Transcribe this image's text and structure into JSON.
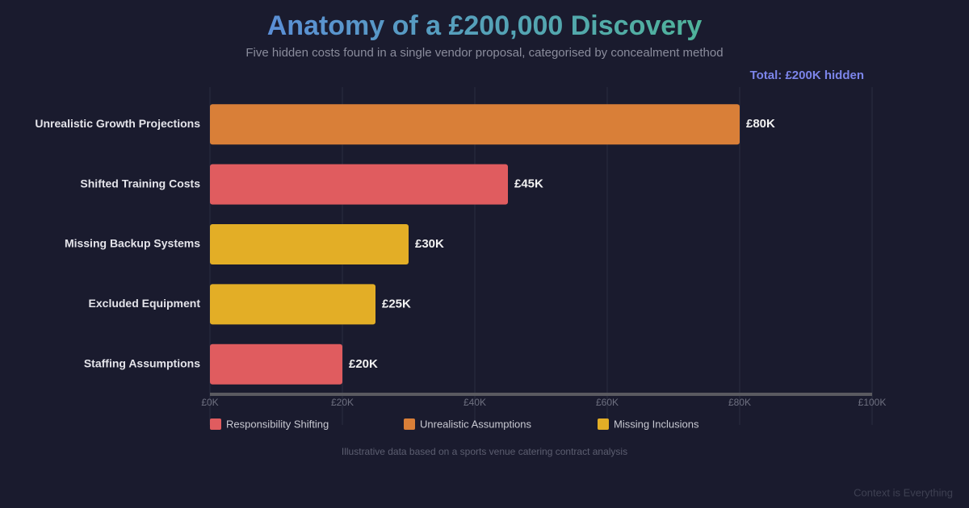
{
  "chart_data": {
    "type": "bar",
    "orientation": "horizontal",
    "title": "Anatomy of a £200,000 Discovery",
    "subtitle": "Five hidden costs found in a single vendor proposal, categorised by concealment method",
    "annotation": "Total: £200K hidden",
    "footnote": "Illustrative data based on a sports venue catering contract analysis",
    "watermark": "Context is Everything",
    "categories": [
      "Unrealistic Growth Projections",
      "Shifted Training Costs",
      "Missing Backup Systems",
      "Excluded Equipment",
      "Staffing Assumptions"
    ],
    "series": [
      {
        "name": "Responsibility Shifting",
        "color": "#e05c5f",
        "values": [
          null,
          45,
          null,
          null,
          20
        ],
        "value_labels": [
          null,
          "£45K",
          null,
          null,
          "£20K"
        ]
      },
      {
        "name": "Unrealistic Assumptions",
        "color": "#d97f38",
        "values": [
          80,
          null,
          null,
          null,
          null
        ],
        "value_labels": [
          "£80K",
          null,
          null,
          null,
          null
        ]
      },
      {
        "name": "Missing Inclusions",
        "color": "#e3ae26",
        "values": [
          null,
          null,
          30,
          25,
          null
        ],
        "value_labels": [
          null,
          null,
          "£30K",
          "£25K",
          null
        ]
      }
    ],
    "xlim": [
      0,
      100
    ],
    "xticks": [
      {
        "value": 0,
        "label": "£0K"
      },
      {
        "value": 20,
        "label": "£20K"
      },
      {
        "value": 40,
        "label": "£40K"
      },
      {
        "value": 60,
        "label": "£60K"
      },
      {
        "value": 80,
        "label": "£80K"
      },
      {
        "value": 100,
        "label": "£100K"
      }
    ],
    "grid": true
  }
}
